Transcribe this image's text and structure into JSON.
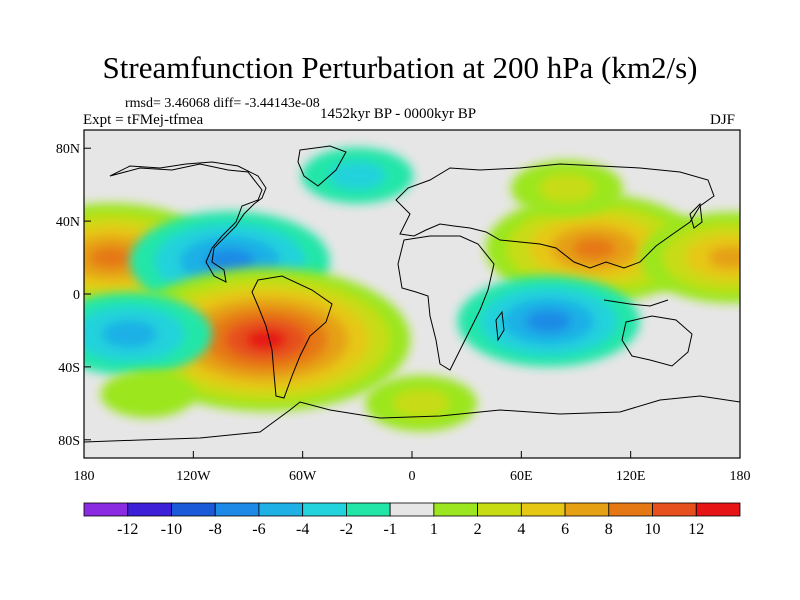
{
  "title": "Streamfunction Perturbation at 200 hPa (km2/s)",
  "subtitle_left_top": "rmsd= 3.46068 diff= -3.44143e-08",
  "subtitle_left": "Expt = tFMej-tfmea",
  "subtitle_center": "1452kyr BP - 0000kyr BP",
  "subtitle_right": "DJF",
  "map": {
    "projection": "cylindrical-equidistant",
    "lon_range": [
      -180,
      180
    ],
    "lat_range": [
      -90,
      90
    ],
    "background_color": "#e6e6e6",
    "x_ticks": [
      "180",
      "120W",
      "60W",
      "0",
      "60E",
      "120E",
      "180"
    ],
    "y_ticks": [
      "80N",
      "40N",
      "0",
      "40S",
      "80S"
    ]
  },
  "colorbar": {
    "colors": [
      "#8a2be2",
      "#3c1fd6",
      "#1a5ad8",
      "#1c8ae6",
      "#1fb0e6",
      "#22d2dc",
      "#22e6a8",
      "#e6e6e6",
      "#9be61e",
      "#c8dc14",
      "#e6c814",
      "#e6a014",
      "#e67814",
      "#e6501e",
      "#e61414"
    ],
    "labels": [
      "-12",
      "-10",
      "-8",
      "-6",
      "-4",
      "-2",
      "-1",
      "1",
      "2",
      "4",
      "6",
      "8",
      "10",
      "12"
    ]
  },
  "anomaly_regions": [
    {
      "lon": -165,
      "lat": 20,
      "value": 8
    },
    {
      "lon": -100,
      "lat": 18,
      "value": -7
    },
    {
      "lon": -80,
      "lat": -25,
      "value": 12
    },
    {
      "lon": 100,
      "lat": 25,
      "value": 8
    },
    {
      "lon": 175,
      "lat": 20,
      "value": 6
    },
    {
      "lon": 75,
      "lat": -15,
      "value": -6
    },
    {
      "lon": -30,
      "lat": 65,
      "value": -2
    },
    {
      "lon": 85,
      "lat": 58,
      "value": 2
    },
    {
      "lon": 5,
      "lat": -60,
      "value": 2
    },
    {
      "lon": -155,
      "lat": -22,
      "value": -5
    },
    {
      "lon": -145,
      "lat": -55,
      "value": 1
    }
  ]
}
